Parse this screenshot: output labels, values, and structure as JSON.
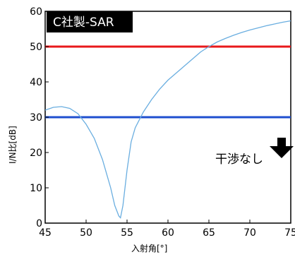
{
  "chart_data": {
    "type": "line",
    "title": "C社製-SAR",
    "xlabel": "入射角[°]",
    "ylabel": "I/N比[dB]",
    "xlim": [
      45,
      75
    ],
    "ylim": [
      0,
      60
    ],
    "x_ticks": [
      "45",
      "50",
      "55",
      "60",
      "65",
      "70",
      "75"
    ],
    "y_ticks": [
      "0",
      "10",
      "20",
      "30",
      "40",
      "50",
      "60"
    ],
    "grid": false,
    "series": [
      {
        "color": "#6aaee0",
        "x": [
          45,
          46,
          47,
          48,
          49,
          50,
          51,
          52,
          53,
          53.5,
          54,
          54.2,
          54.5,
          55,
          55.5,
          56,
          57,
          58,
          59,
          60,
          61,
          62,
          63,
          64,
          65,
          66,
          67,
          68,
          69,
          70,
          71,
          72,
          73,
          74,
          75
        ],
        "y": [
          32,
          32.8,
          33,
          32.5,
          31,
          28,
          24,
          18,
          10,
          5,
          2,
          1.5,
          5,
          15,
          23,
          27,
          31.5,
          35,
          38,
          40.5,
          42.5,
          44.5,
          46.5,
          48.5,
          50,
          51.3,
          52.3,
          53.2,
          54,
          54.7,
          55.3,
          55.9,
          56.4,
          56.9,
          57.3
        ]
      }
    ],
    "hlines": [
      {
        "y": 50,
        "color": "#e8191b"
      },
      {
        "y": 30,
        "color": "#1f4fcf"
      }
    ],
    "annotation": "干渉なし"
  }
}
